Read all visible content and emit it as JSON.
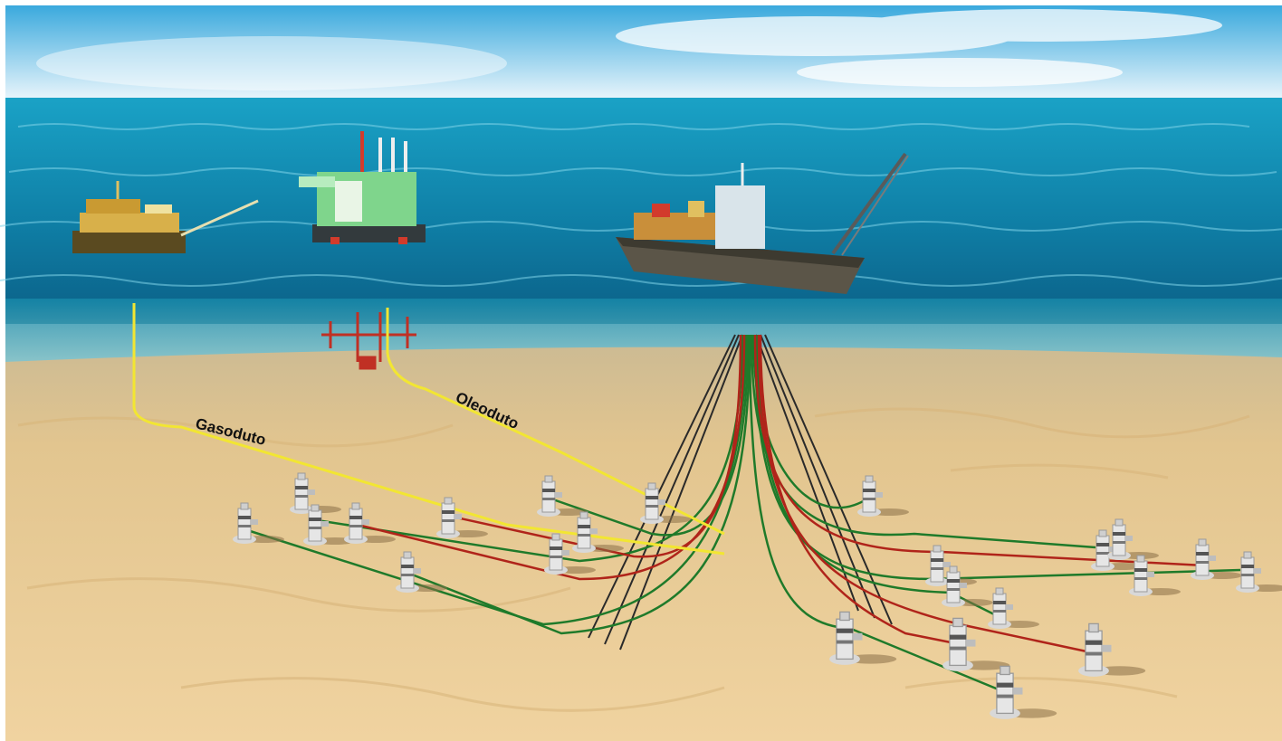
{
  "labels": {
    "gas_pipeline": "Gasoduto",
    "oil_pipeline": "Oleoduto"
  },
  "colors": {
    "sky_top": "#2fa8e0",
    "sky_bottom": "#eaf6fc",
    "sea_surface": "#1e9ec2",
    "sea_deep": "#0a6f93",
    "seabed": "#e8c894",
    "pipeline_yellow": "#f2e632",
    "line_green": "#1f7a2a",
    "line_red": "#b0241a",
    "line_black": "#2a2a2a"
  }
}
